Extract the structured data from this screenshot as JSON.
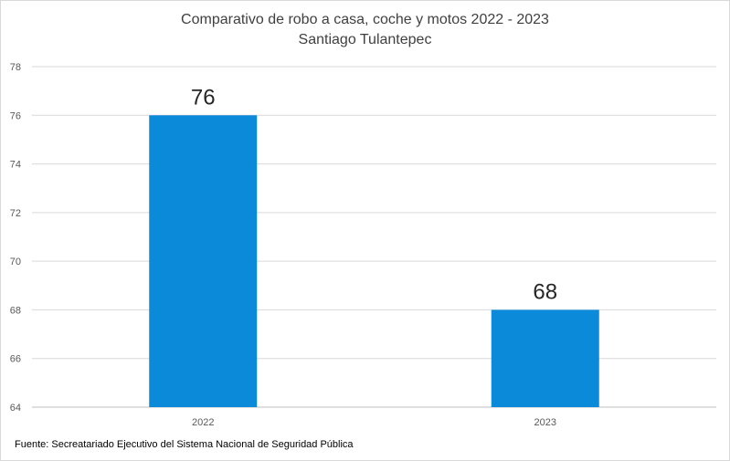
{
  "chart_data": {
    "type": "bar",
    "title": "Comparativo de robo a casa, coche y motos 2022 - 2023",
    "subtitle": "Santiago Tulantepec",
    "categories": [
      "2022",
      "2023"
    ],
    "values": [
      76,
      68
    ],
    "data_labels": [
      "76",
      "68"
    ],
    "ylim": [
      64,
      78
    ],
    "yticks": [
      64,
      66,
      68,
      70,
      72,
      74,
      76,
      78
    ],
    "xlabel": "",
    "ylabel": "",
    "grid": true,
    "legend": "none",
    "bar_color": "#0b8ad9"
  },
  "source": "Fuente:  Secreatariado Ejecutivo del Sistema Nacional de Seguridad Pública"
}
